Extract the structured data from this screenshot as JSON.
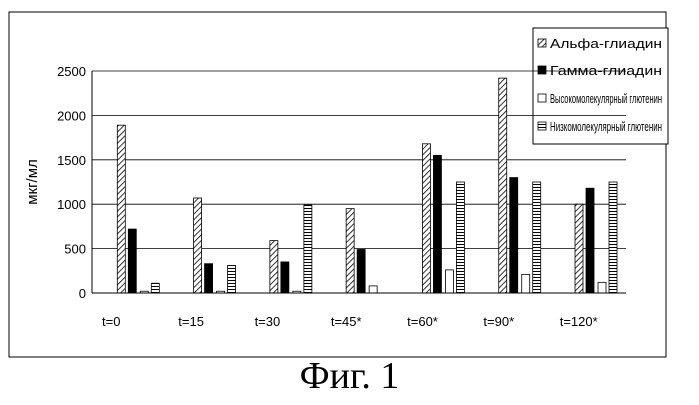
{
  "caption": "Фиг. 1",
  "chart_data": {
    "type": "bar",
    "title": "",
    "xlabel": "",
    "ylabel": "мкг/мл",
    "ylim": [
      0,
      2500
    ],
    "yticks": [
      0,
      500,
      1000,
      1500,
      2000,
      2500
    ],
    "grid": true,
    "legend_position": "top-right",
    "categories": [
      "t=0",
      "t=15",
      "t=30",
      "t=45*",
      "t=60*",
      "t=90*",
      "t=120*"
    ],
    "series": [
      {
        "name": "Альфа-глиадин",
        "pattern": "diagonal-hatch",
        "values": [
          1890,
          1070,
          590,
          950,
          1680,
          2420,
          1000
        ]
      },
      {
        "name": "Гамма-глиадин",
        "pattern": "solid-black",
        "values": [
          720,
          330,
          350,
          490,
          1550,
          1300,
          1180
        ]
      },
      {
        "name": "Высокомолекулярный глютенин",
        "pattern": "white",
        "values": [
          20,
          20,
          20,
          80,
          260,
          210,
          120
        ]
      },
      {
        "name": "Низкомолекулярный глютенин",
        "pattern": "horizontal-lines",
        "values": [
          110,
          310,
          990,
          0,
          1250,
          1250,
          1250
        ]
      }
    ]
  }
}
